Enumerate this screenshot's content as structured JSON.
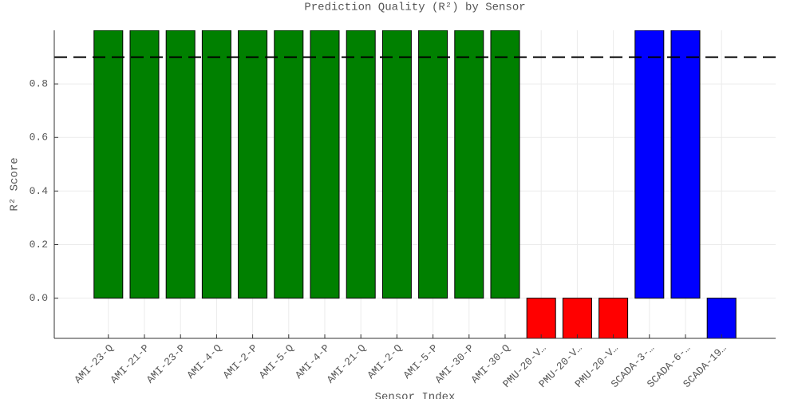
{
  "chart_data": {
    "type": "bar",
    "title": "Prediction Quality (R²) by Sensor",
    "x_label": "Sensor Index",
    "y_label": "R² Score",
    "categories": [
      "AMI-23-Q",
      "AMI-21-P",
      "AMI-23-P",
      "AMI-4-Q",
      "AMI-2-P",
      "AMI-5-Q",
      "AMI-4-P",
      "AMI-21-Q",
      "AMI-2-Q",
      "AMI-5-P",
      "AMI-30-P",
      "AMI-30-Q",
      "PMU-20-V…",
      "PMU-20-V…",
      "PMU-20-V…",
      "SCADA-3-…",
      "SCADA-6-…",
      "SCADA-19…"
    ],
    "values": [
      1.0,
      1.0,
      1.0,
      1.0,
      1.0,
      1.0,
      1.0,
      1.0,
      1.0,
      1.0,
      1.0,
      1.0,
      -0.15,
      -0.15,
      -0.15,
      1.0,
      1.0,
      -0.15
    ],
    "colors": [
      "#008000",
      "#008000",
      "#008000",
      "#008000",
      "#008000",
      "#008000",
      "#008000",
      "#008000",
      "#008000",
      "#008000",
      "#008000",
      "#008000",
      "#ff0000",
      "#ff0000",
      "#ff0000",
      "#0000ff",
      "#0000ff",
      "#0000ff"
    ],
    "hline": 0.9,
    "ylim": [
      -0.15,
      1.0
    ],
    "yticks": [
      {
        "value": 0,
        "label": "0.0"
      },
      0.2,
      0.4,
      0.6,
      0.8
    ],
    "grid": true
  }
}
